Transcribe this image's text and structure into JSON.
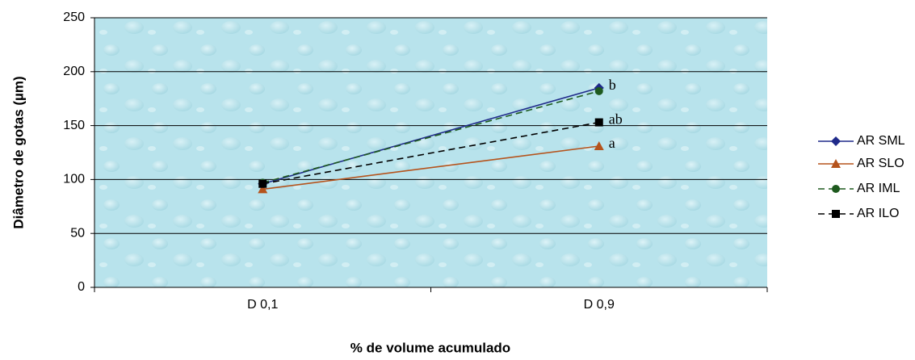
{
  "chart_data": {
    "type": "line",
    "xlabel": "% de volume acumulado",
    "ylabel": "Diâmetro de gotas (µm)",
    "categories": [
      "D 0,1",
      "D 0,9"
    ],
    "ylim": [
      0,
      250
    ],
    "yticks": [
      0,
      50,
      100,
      150,
      200,
      250
    ],
    "grid": true,
    "legend": "right",
    "series": [
      {
        "name": "AR SML",
        "color": "#1f2a8a",
        "marker": "diamond",
        "dash": false,
        "values": [
          96,
          185
        ],
        "annotation": "b"
      },
      {
        "name": "AR SLO",
        "color": "#b5531c",
        "marker": "triangle",
        "dash": false,
        "values": [
          91,
          131
        ],
        "annotation": "a"
      },
      {
        "name": "AR IML",
        "color": "#1e5a1e",
        "marker": "circle",
        "dash": true,
        "values": [
          97,
          182
        ]
      },
      {
        "name": "AR ILO",
        "color": "#000000",
        "marker": "square",
        "dash": true,
        "values": [
          96,
          153
        ],
        "annotation": "ab"
      }
    ]
  }
}
